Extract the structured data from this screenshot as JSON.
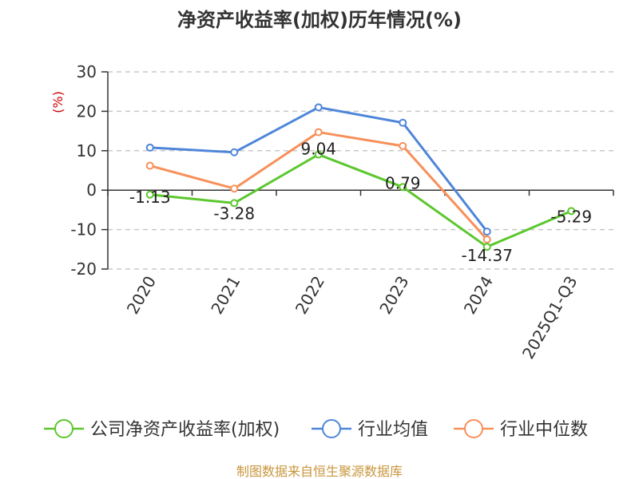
{
  "chart_data": {
    "type": "line",
    "title": "净资产收益率(加权)历年情况(%)",
    "ylabel": "(%)",
    "xlabel": "",
    "categories": [
      "2020",
      "2021",
      "2022",
      "2023",
      "2024",
      "2025Q1-Q3"
    ],
    "ylim": [
      -20,
      30
    ],
    "yticks": [
      30,
      20,
      10,
      0,
      -10,
      -20
    ],
    "grid": true,
    "legend_position": "bottom",
    "series": [
      {
        "name": "公司净资产收益率(加权)",
        "color": "#5cc72e",
        "values": [
          -1.13,
          -3.28,
          9.04,
          0.79,
          -14.37,
          -5.29
        ],
        "labels": [
          "-1.13",
          "-3.28",
          "9.04",
          "0.79",
          "-14.37",
          "-5.29"
        ]
      },
      {
        "name": "行业均值",
        "color": "#4f86d9",
        "values": [
          10.8,
          9.6,
          21.0,
          17.1,
          -10.5,
          null
        ]
      },
      {
        "name": "行业中位数",
        "color": "#f7905a",
        "values": [
          6.2,
          0.4,
          14.7,
          11.2,
          -12.5,
          null
        ]
      }
    ],
    "ylabel_color": "#cc0000",
    "source": "制图数据来自恒生聚源数据库",
    "source_color": "#c8963c"
  }
}
